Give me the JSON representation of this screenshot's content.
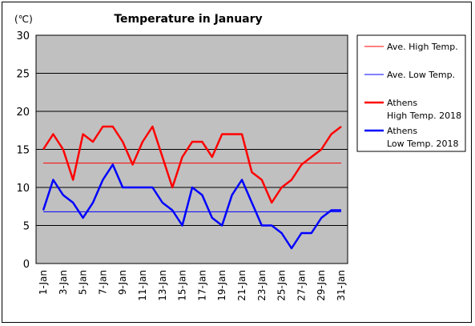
{
  "chart_data": {
    "type": "line",
    "title": "Temperature in January",
    "ylabel": "(℃)",
    "xlabel": "",
    "ylim": [
      0,
      30
    ],
    "yticks": [
      0,
      5,
      10,
      15,
      20,
      25,
      30
    ],
    "x": [
      "1-Jan",
      "2-Jan",
      "3-Jan",
      "4-Jan",
      "5-Jan",
      "6-Jan",
      "7-Jan",
      "8-Jan",
      "9-Jan",
      "10-Jan",
      "11-Jan",
      "12-Jan",
      "13-Jan",
      "14-Jan",
      "15-Jan",
      "16-Jan",
      "17-Jan",
      "18-Jan",
      "19-Jan",
      "20-Jan",
      "21-Jan",
      "22-Jan",
      "23-Jan",
      "24-Jan",
      "25-Jan",
      "26-Jan",
      "27-Jan",
      "28-Jan",
      "29-Jan",
      "30-Jan",
      "31-Jan"
    ],
    "xtick_labels": [
      "1-Jan",
      "3-Jan",
      "5-Jan",
      "7-Jan",
      "9-Jan",
      "11-Jan",
      "13-Jan",
      "15-Jan",
      "17-Jan",
      "19-Jan",
      "21-Jan",
      "23-Jan",
      "25-Jan",
      "27-Jan",
      "29-Jan",
      "31-Jan"
    ],
    "grid": true,
    "legend_position": "right",
    "plot_background": "#c0c0c0",
    "series": [
      {
        "name": "Ave. High Temp.",
        "color": "#ff0000",
        "width": 1,
        "values": [
          13.2,
          13.2,
          13.2,
          13.2,
          13.2,
          13.2,
          13.2,
          13.2,
          13.2,
          13.2,
          13.2,
          13.2,
          13.2,
          13.2,
          13.2,
          13.2,
          13.2,
          13.2,
          13.2,
          13.2,
          13.2,
          13.2,
          13.2,
          13.2,
          13.2,
          13.2,
          13.2,
          13.2,
          13.2,
          13.2,
          13.2
        ]
      },
      {
        "name": "Ave. Low Temp.",
        "color": "#0000ff",
        "width": 1,
        "values": [
          6.8,
          6.8,
          6.8,
          6.8,
          6.8,
          6.8,
          6.8,
          6.8,
          6.8,
          6.8,
          6.8,
          6.8,
          6.8,
          6.8,
          6.8,
          6.8,
          6.8,
          6.8,
          6.8,
          6.8,
          6.8,
          6.8,
          6.8,
          6.8,
          6.8,
          6.8,
          6.8,
          6.8,
          6.8,
          6.8,
          6.8
        ]
      },
      {
        "name": "Athens High Temp. 2018",
        "name_lines": [
          "Athens",
          "High Temp. 2018"
        ],
        "color": "#ff0000",
        "width": 2.5,
        "values": [
          15,
          17,
          15,
          11,
          17,
          16,
          18,
          18,
          16,
          13,
          16,
          18,
          14,
          10,
          14,
          16,
          16,
          14,
          17,
          17,
          17,
          12,
          11,
          8,
          10,
          11,
          13,
          14,
          15,
          17,
          18
        ]
      },
      {
        "name": "Athens Low Temp. 2018",
        "name_lines": [
          "Athens",
          "Low Temp. 2018"
        ],
        "color": "#0000ff",
        "width": 2.5,
        "values": [
          7,
          11,
          9,
          8,
          6,
          8,
          11,
          13,
          10,
          10,
          10,
          10,
          8,
          7,
          5,
          10,
          9,
          6,
          5,
          9,
          11,
          8,
          5,
          5,
          4,
          2,
          4,
          4,
          6,
          7,
          7
        ]
      }
    ]
  }
}
